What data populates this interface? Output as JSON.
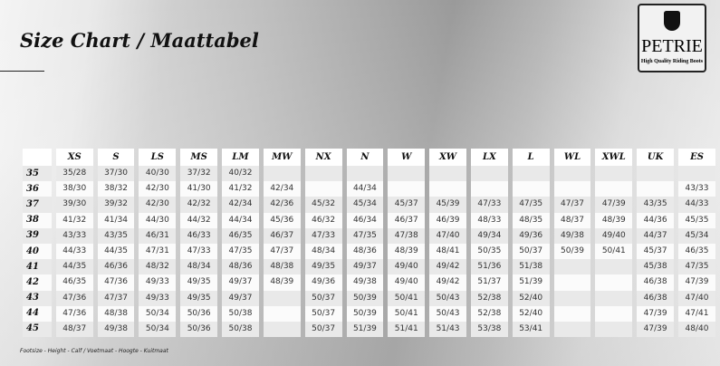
{
  "title": "Size Chart / Maattabel",
  "logo": {
    "name": "PETRIE",
    "tagline": "High Quality Riding Boots"
  },
  "columns": [
    "XS",
    "S",
    "LS",
    "MS",
    "LM",
    "MW",
    "NX",
    "N",
    "W",
    "XW",
    "LX",
    "L",
    "WL",
    "XWL",
    "UK",
    "ES"
  ],
  "rows": [
    {
      "size": "35",
      "values": [
        "35/28",
        "37/30",
        "40/30",
        "37/32",
        "40/32",
        "",
        "",
        "",
        "",
        "",
        "",
        "",
        "",
        "",
        "",
        ""
      ]
    },
    {
      "size": "36",
      "values": [
        "38/30",
        "38/32",
        "42/30",
        "41/30",
        "41/32",
        "42/34",
        "",
        "44/34",
        "",
        "",
        "",
        "",
        "",
        "",
        "",
        "43/33"
      ]
    },
    {
      "size": "37",
      "values": [
        "39/30",
        "39/32",
        "42/30",
        "42/32",
        "42/34",
        "42/36",
        "45/32",
        "45/34",
        "45/37",
        "45/39",
        "47/33",
        "47/35",
        "47/37",
        "47/39",
        "43/35",
        "44/33"
      ]
    },
    {
      "size": "38",
      "values": [
        "41/32",
        "41/34",
        "44/30",
        "44/32",
        "44/34",
        "45/36",
        "46/32",
        "46/34",
        "46/37",
        "46/39",
        "48/33",
        "48/35",
        "48/37",
        "48/39",
        "44/36",
        "45/35"
      ]
    },
    {
      "size": "39",
      "values": [
        "43/33",
        "43/35",
        "46/31",
        "46/33",
        "46/35",
        "46/37",
        "47/33",
        "47/35",
        "47/38",
        "47/40",
        "49/34",
        "49/36",
        "49/38",
        "49/40",
        "44/37",
        "45/34"
      ]
    },
    {
      "size": "40",
      "values": [
        "44/33",
        "44/35",
        "47/31",
        "47/33",
        "47/35",
        "47/37",
        "48/34",
        "48/36",
        "48/39",
        "48/41",
        "50/35",
        "50/37",
        "50/39",
        "50/41",
        "45/37",
        "46/35"
      ]
    },
    {
      "size": "41",
      "values": [
        "44/35",
        "46/36",
        "48/32",
        "48/34",
        "48/36",
        "48/38",
        "49/35",
        "49/37",
        "49/40",
        "49/42",
        "51/36",
        "51/38",
        "",
        "",
        "45/38",
        "47/35"
      ]
    },
    {
      "size": "42",
      "values": [
        "46/35",
        "47/36",
        "49/33",
        "49/35",
        "49/37",
        "48/39",
        "49/36",
        "49/38",
        "49/40",
        "49/42",
        "51/37",
        "51/39",
        "",
        "",
        "46/38",
        "47/39"
      ]
    },
    {
      "size": "43",
      "values": [
        "47/36",
        "47/37",
        "49/33",
        "49/35",
        "49/37",
        "",
        "50/37",
        "50/39",
        "50/41",
        "50/43",
        "52/38",
        "52/40",
        "",
        "",
        "46/38",
        "47/40"
      ]
    },
    {
      "size": "44",
      "values": [
        "47/36",
        "48/38",
        "50/34",
        "50/36",
        "50/38",
        "",
        "50/37",
        "50/39",
        "50/41",
        "50/43",
        "52/38",
        "52/40",
        "",
        "",
        "47/39",
        "47/41"
      ]
    },
    {
      "size": "45",
      "values": [
        "48/37",
        "49/38",
        "50/34",
        "50/36",
        "50/38",
        "",
        "50/37",
        "51/39",
        "51/41",
        "51/43",
        "53/38",
        "53/41",
        "",
        "",
        "47/39",
        "48/40"
      ]
    }
  ],
  "footnote": "Footsize - Height - Calf / Voetmaat - Hoogte - Kuitmaat"
}
